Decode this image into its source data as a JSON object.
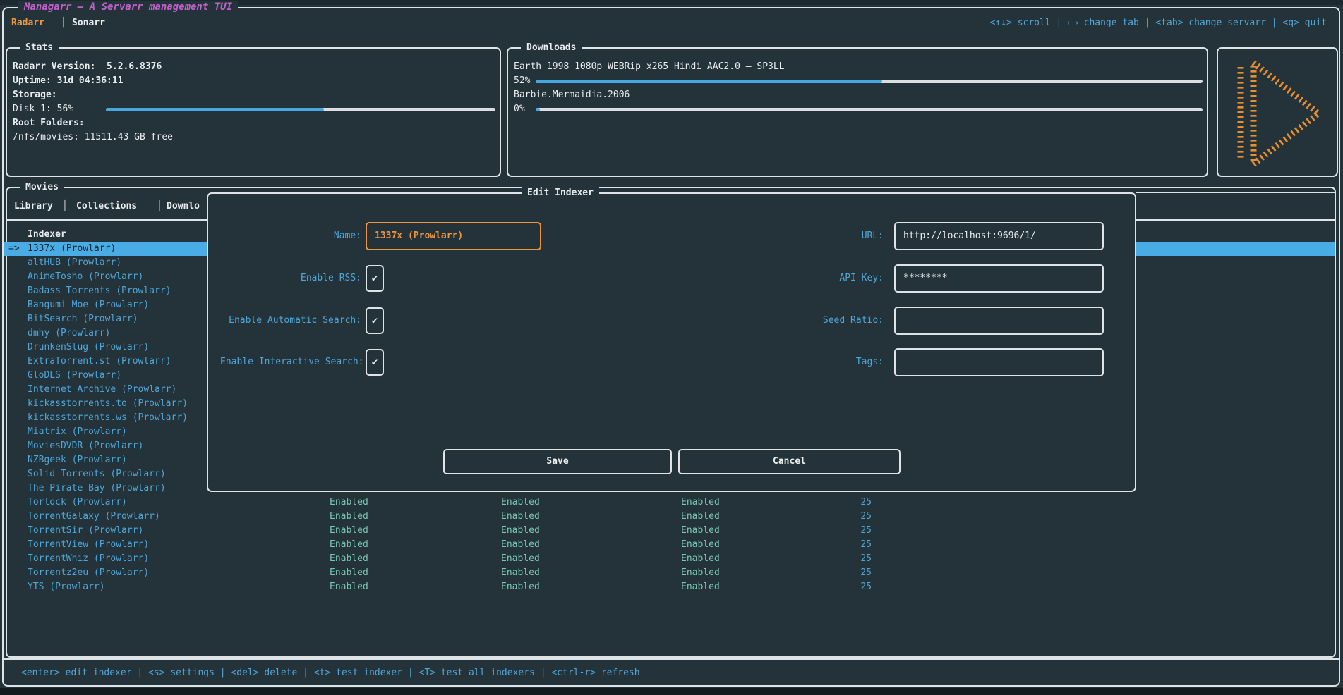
{
  "colors": {
    "background": "#243239",
    "border": "#dde3e6",
    "blue": "#4fa6d9",
    "selected_bg": "#49ace5",
    "selected_text": "#102530",
    "orange": "#ec9540",
    "magenta": "#c061cb",
    "teal": "#79c6b4",
    "white": "#e8ecee",
    "bar_track": "#d9dee1",
    "bar_fill": "#46a8e0",
    "logo_orange": "#e89030"
  },
  "titlebar": {
    "title": "Managarr – A Servarr management TUI",
    "tabs": [
      {
        "label": "Radarr"
      },
      {
        "label": "Sonarr"
      }
    ],
    "tab_divider": "│",
    "keybindings": "<↑↓> scroll | ←→ change tab | <tab> change servarr | <q> quit"
  },
  "stats": {
    "title": "Stats",
    "version_line": "Radarr Version:  5.2.6.8376",
    "uptime_line": "Uptime: 31d 04:36:11",
    "storage_label": "Storage:",
    "disk_line": "Disk 1: 56%",
    "disk_percent": 56,
    "root_folders_label": "Root Folders:",
    "root_folder_line": "/nfs/movies: 11511.43 GB free"
  },
  "downloads": {
    "title": "Downloads",
    "items": [
      {
        "name": "Earth 1998 1080p WEBRip x265 Hindi AAC2.0 – SP3LL",
        "percent_label": "52%",
        "percent": 52
      },
      {
        "name": "Barbie.Mermaidia.2006",
        "percent_label": "0%",
        "percent": 0
      }
    ]
  },
  "logo": {
    "icon": "managarr-play-logo"
  },
  "movies": {
    "title": "Movies",
    "tabs": [
      "Library",
      "Collections",
      "Downlo"
    ],
    "tab_divider": "│",
    "table": {
      "header": "Indexer",
      "selected_prefix": "=>",
      "rows": [
        {
          "name": "1337x (Prowlarr)",
          "selected": true
        },
        {
          "name": "altHUB (Prowlarr)"
        },
        {
          "name": "AnimeTosho (Prowlarr)"
        },
        {
          "name": "Badass Torrents (Prowlarr)"
        },
        {
          "name": "Bangumi Moe (Prowlarr)"
        },
        {
          "name": "BitSearch (Prowlarr)"
        },
        {
          "name": "dmhy (Prowlarr)"
        },
        {
          "name": "DrunkenSlug (Prowlarr)"
        },
        {
          "name": "ExtraTorrent.st (Prowlarr)"
        },
        {
          "name": "GloDLS (Prowlarr)"
        },
        {
          "name": "Internet Archive (Prowlarr)"
        },
        {
          "name": "kickasstorrents.to (Prowlarr)"
        },
        {
          "name": "kickasstorrents.ws (Prowlarr)"
        },
        {
          "name": "Miatrix (Prowlarr)"
        },
        {
          "name": "MoviesDVDR (Prowlarr)"
        },
        {
          "name": "NZBgeek (Prowlarr)"
        },
        {
          "name": "Solid Torrents (Prowlarr)"
        },
        {
          "name": "The Pirate Bay (Prowlarr)"
        },
        {
          "name": "Torlock (Prowlarr)",
          "rss": "Enabled",
          "automatic_search": "Enabled",
          "interactive_search": "Enabled",
          "priority": "25"
        },
        {
          "name": "TorrentGalaxy (Prowlarr)",
          "rss": "Enabled",
          "automatic_search": "Enabled",
          "interactive_search": "Enabled",
          "priority": "25"
        },
        {
          "name": "TorrentSir (Prowlarr)",
          "rss": "Enabled",
          "automatic_search": "Enabled",
          "interactive_search": "Enabled",
          "priority": "25"
        },
        {
          "name": "TorrentView (Prowlarr)",
          "rss": "Enabled",
          "automatic_search": "Enabled",
          "interactive_search": "Enabled",
          "priority": "25"
        },
        {
          "name": "TorrentWhiz (Prowlarr)",
          "rss": "Enabled",
          "automatic_search": "Enabled",
          "interactive_search": "Enabled",
          "priority": "25"
        },
        {
          "name": "Torrentz2eu (Prowlarr)",
          "rss": "Enabled",
          "automatic_search": "Enabled",
          "interactive_search": "Enabled",
          "priority": "25"
        },
        {
          "name": "YTS (Prowlarr)",
          "rss": "Enabled",
          "automatic_search": "Enabled",
          "interactive_search": "Enabled",
          "priority": "25"
        }
      ]
    }
  },
  "modal": {
    "title": "Edit Indexer",
    "name_label": "Name:",
    "name_value": "1337x (Prowlarr)",
    "rss_label": "Enable RSS:",
    "automatic_label": "Enable Automatic Search:",
    "interactive_label": "Enable Interactive Search:",
    "checkbox_glyph": "✔",
    "url_label": "URL:",
    "url_value": "http://localhost:9696/1/",
    "api_key_label": "API Key:",
    "api_key_value": "********",
    "seed_ratio_label": "Seed Ratio:",
    "seed_ratio_value": "",
    "tags_label": "Tags:",
    "tags_value": "",
    "save_label": "Save",
    "cancel_label": "Cancel"
  },
  "footer": {
    "keybindings": "<enter> edit indexer | <s> settings | <del> delete | <t> test indexer | <T> test all indexers | <ctrl-r> refresh"
  }
}
